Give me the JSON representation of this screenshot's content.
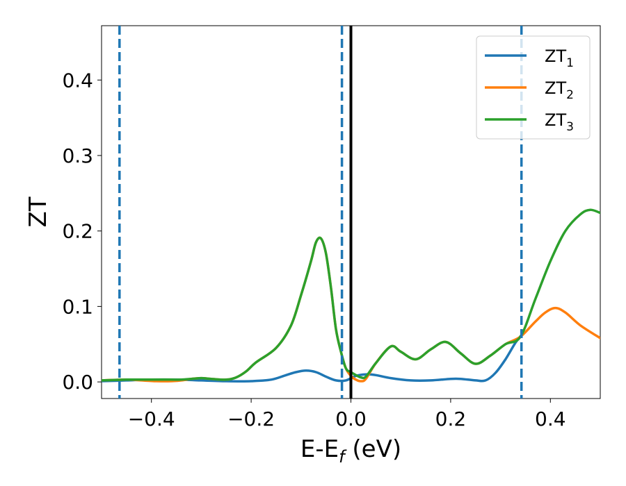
{
  "chart_data": {
    "type": "line",
    "title": "",
    "xlabel": "E-E",
    "xlabel_sub": "f",
    "xlabel_unit": " (eV)",
    "ylabel": "ZT",
    "xlim": [
      -0.5,
      0.5
    ],
    "ylim": [
      -0.022,
      0.472
    ],
    "xticks": [
      -0.4,
      -0.2,
      0.0,
      0.2,
      0.4
    ],
    "xtick_labels": [
      "−0.4",
      "−0.2",
      "0.0",
      "0.2",
      "0.4"
    ],
    "yticks": [
      0.0,
      0.1,
      0.2,
      0.3,
      0.4
    ],
    "ytick_labels": [
      "0.0",
      "0.1",
      "0.2",
      "0.3",
      "0.4"
    ],
    "grid": false,
    "legend_position": "top-right",
    "vlines": [
      {
        "x": -0.464,
        "style": "dashed",
        "color": "#1f77b4"
      },
      {
        "x": -0.018,
        "style": "dashed",
        "color": "#1f77b4"
      },
      {
        "x": 0.0,
        "style": "solid",
        "color": "#000000"
      },
      {
        "x": 0.342,
        "style": "dashed",
        "color": "#1f77b4"
      }
    ],
    "series": [
      {
        "name": "ZT",
        "subscript": "1",
        "color": "#1f77b4",
        "x": [
          -0.5,
          -0.45,
          -0.4,
          -0.35,
          -0.3,
          -0.25,
          -0.2,
          -0.16,
          -0.13,
          -0.11,
          -0.09,
          -0.07,
          -0.05,
          -0.03,
          -0.01,
          0.01,
          0.03,
          0.05,
          0.08,
          0.12,
          0.16,
          0.2,
          0.22,
          0.25,
          0.27,
          0.29,
          0.31,
          0.33,
          0.342
        ],
        "y": [
          0.001,
          0.002,
          0.003,
          0.003,
          0.002,
          0.001,
          0.001,
          0.003,
          0.009,
          0.013,
          0.015,
          0.013,
          0.007,
          0.002,
          0.002,
          0.008,
          0.01,
          0.009,
          0.005,
          0.002,
          0.002,
          0.004,
          0.004,
          0.002,
          0.002,
          0.012,
          0.03,
          0.052,
          0.062
        ]
      },
      {
        "name": "ZT",
        "subscript": "2",
        "color": "#ff7f0e",
        "x": [
          -0.5,
          -0.45,
          -0.42,
          -0.39,
          -0.36,
          -0.34,
          -0.32,
          -0.3,
          -0.28,
          -0.25,
          -0.23,
          -0.21,
          -0.19,
          -0.15,
          -0.12,
          -0.1,
          -0.08,
          -0.07,
          -0.06,
          -0.05,
          -0.04,
          -0.03,
          -0.02,
          -0.01,
          0.0,
          0.01,
          0.02,
          0.03,
          0.05,
          0.08,
          0.1,
          0.13,
          0.16,
          0.19,
          0.22,
          0.25,
          0.28,
          0.31,
          0.34,
          0.37,
          0.39,
          0.41,
          0.43,
          0.46,
          0.5
        ],
        "y": [
          0.002,
          0.003,
          0.002,
          0.001,
          0.001,
          0.002,
          0.004,
          0.005,
          0.004,
          0.003,
          0.006,
          0.014,
          0.026,
          0.045,
          0.075,
          0.115,
          0.16,
          0.185,
          0.19,
          0.17,
          0.125,
          0.07,
          0.04,
          0.018,
          0.008,
          0.003,
          0.001,
          0.004,
          0.025,
          0.047,
          0.04,
          0.03,
          0.043,
          0.053,
          0.038,
          0.024,
          0.035,
          0.05,
          0.06,
          0.08,
          0.092,
          0.098,
          0.092,
          0.075,
          0.058
        ]
      },
      {
        "name": "ZT",
        "subscript": "3",
        "color": "#2ca02c",
        "x": [
          -0.5,
          -0.45,
          -0.42,
          -0.39,
          -0.36,
          -0.34,
          -0.32,
          -0.3,
          -0.28,
          -0.25,
          -0.23,
          -0.21,
          -0.19,
          -0.15,
          -0.12,
          -0.1,
          -0.08,
          -0.07,
          -0.06,
          -0.05,
          -0.04,
          -0.03,
          -0.02,
          -0.01,
          0.0,
          0.01,
          0.02,
          0.03,
          0.05,
          0.08,
          0.1,
          0.13,
          0.16,
          0.19,
          0.22,
          0.25,
          0.28,
          0.31,
          0.34,
          0.37,
          0.4,
          0.43,
          0.46,
          0.48,
          0.5
        ],
        "y": [
          0.002,
          0.003,
          0.003,
          0.003,
          0.003,
          0.003,
          0.004,
          0.005,
          0.004,
          0.003,
          0.006,
          0.014,
          0.026,
          0.045,
          0.075,
          0.115,
          0.16,
          0.185,
          0.19,
          0.17,
          0.125,
          0.07,
          0.04,
          0.018,
          0.013,
          0.009,
          0.006,
          0.007,
          0.025,
          0.047,
          0.04,
          0.03,
          0.043,
          0.053,
          0.038,
          0.024,
          0.035,
          0.05,
          0.06,
          0.11,
          0.16,
          0.2,
          0.222,
          0.228,
          0.224
        ]
      }
    ]
  }
}
